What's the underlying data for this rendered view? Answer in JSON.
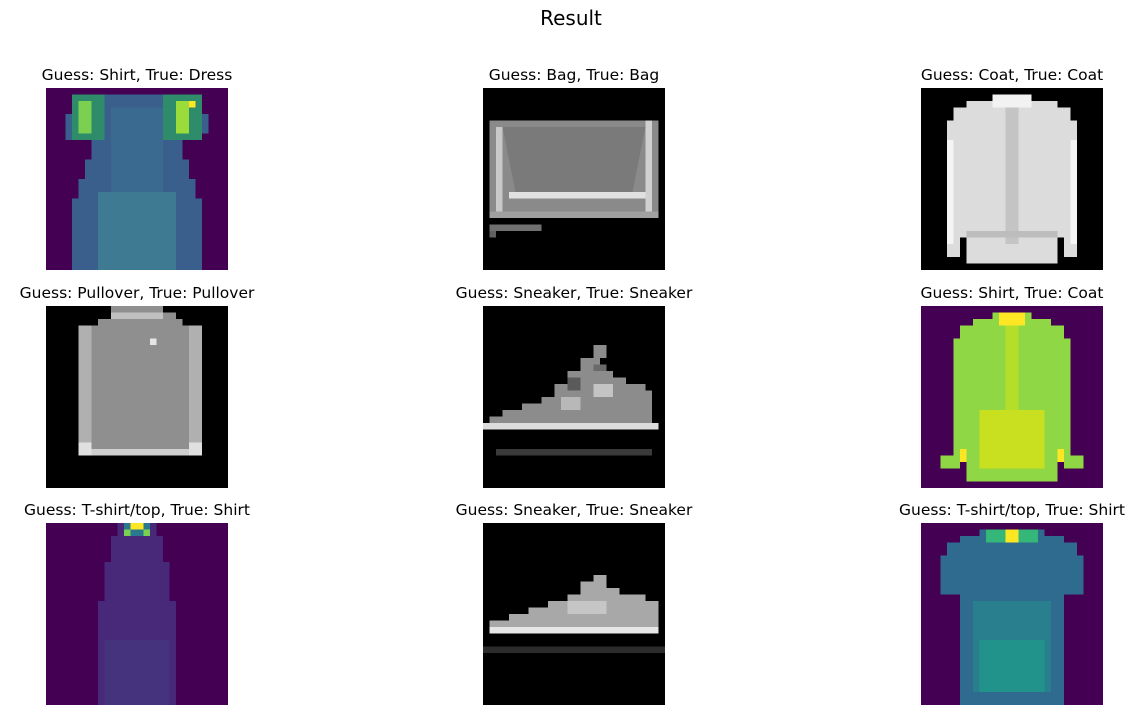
{
  "figure": {
    "title": "Result"
  },
  "panels": [
    {
      "title": "Guess: Shirt, True: Dress",
      "colormap": "viridis",
      "item": "dress-icon"
    },
    {
      "title": "Guess: Bag, True: Bag",
      "colormap": "gray",
      "item": "bag-icon"
    },
    {
      "title": "Guess: Coat, True: Coat",
      "colormap": "gray",
      "item": "coat-icon"
    },
    {
      "title": "Guess: Pullover, True: Pullover",
      "colormap": "gray",
      "item": "pullover-icon"
    },
    {
      "title": "Guess: Sneaker, True: Sneaker",
      "colormap": "gray",
      "item": "sneaker-icon"
    },
    {
      "title": "Guess: Shirt, True: Coat",
      "colormap": "viridis",
      "item": "coat-icon"
    },
    {
      "title": "Guess: T-shirt/top, True: Shirt",
      "colormap": "viridis",
      "item": "dress-icon"
    },
    {
      "title": "Guess: Sneaker, True: Sneaker",
      "colormap": "gray",
      "item": "sneaker-icon"
    },
    {
      "title": "Guess: T-shirt/top, True: Shirt",
      "colormap": "viridis",
      "item": "tshirt-icon"
    }
  ],
  "colors": {
    "viridis_bg": "#440154",
    "gray_bg": "#000000"
  }
}
